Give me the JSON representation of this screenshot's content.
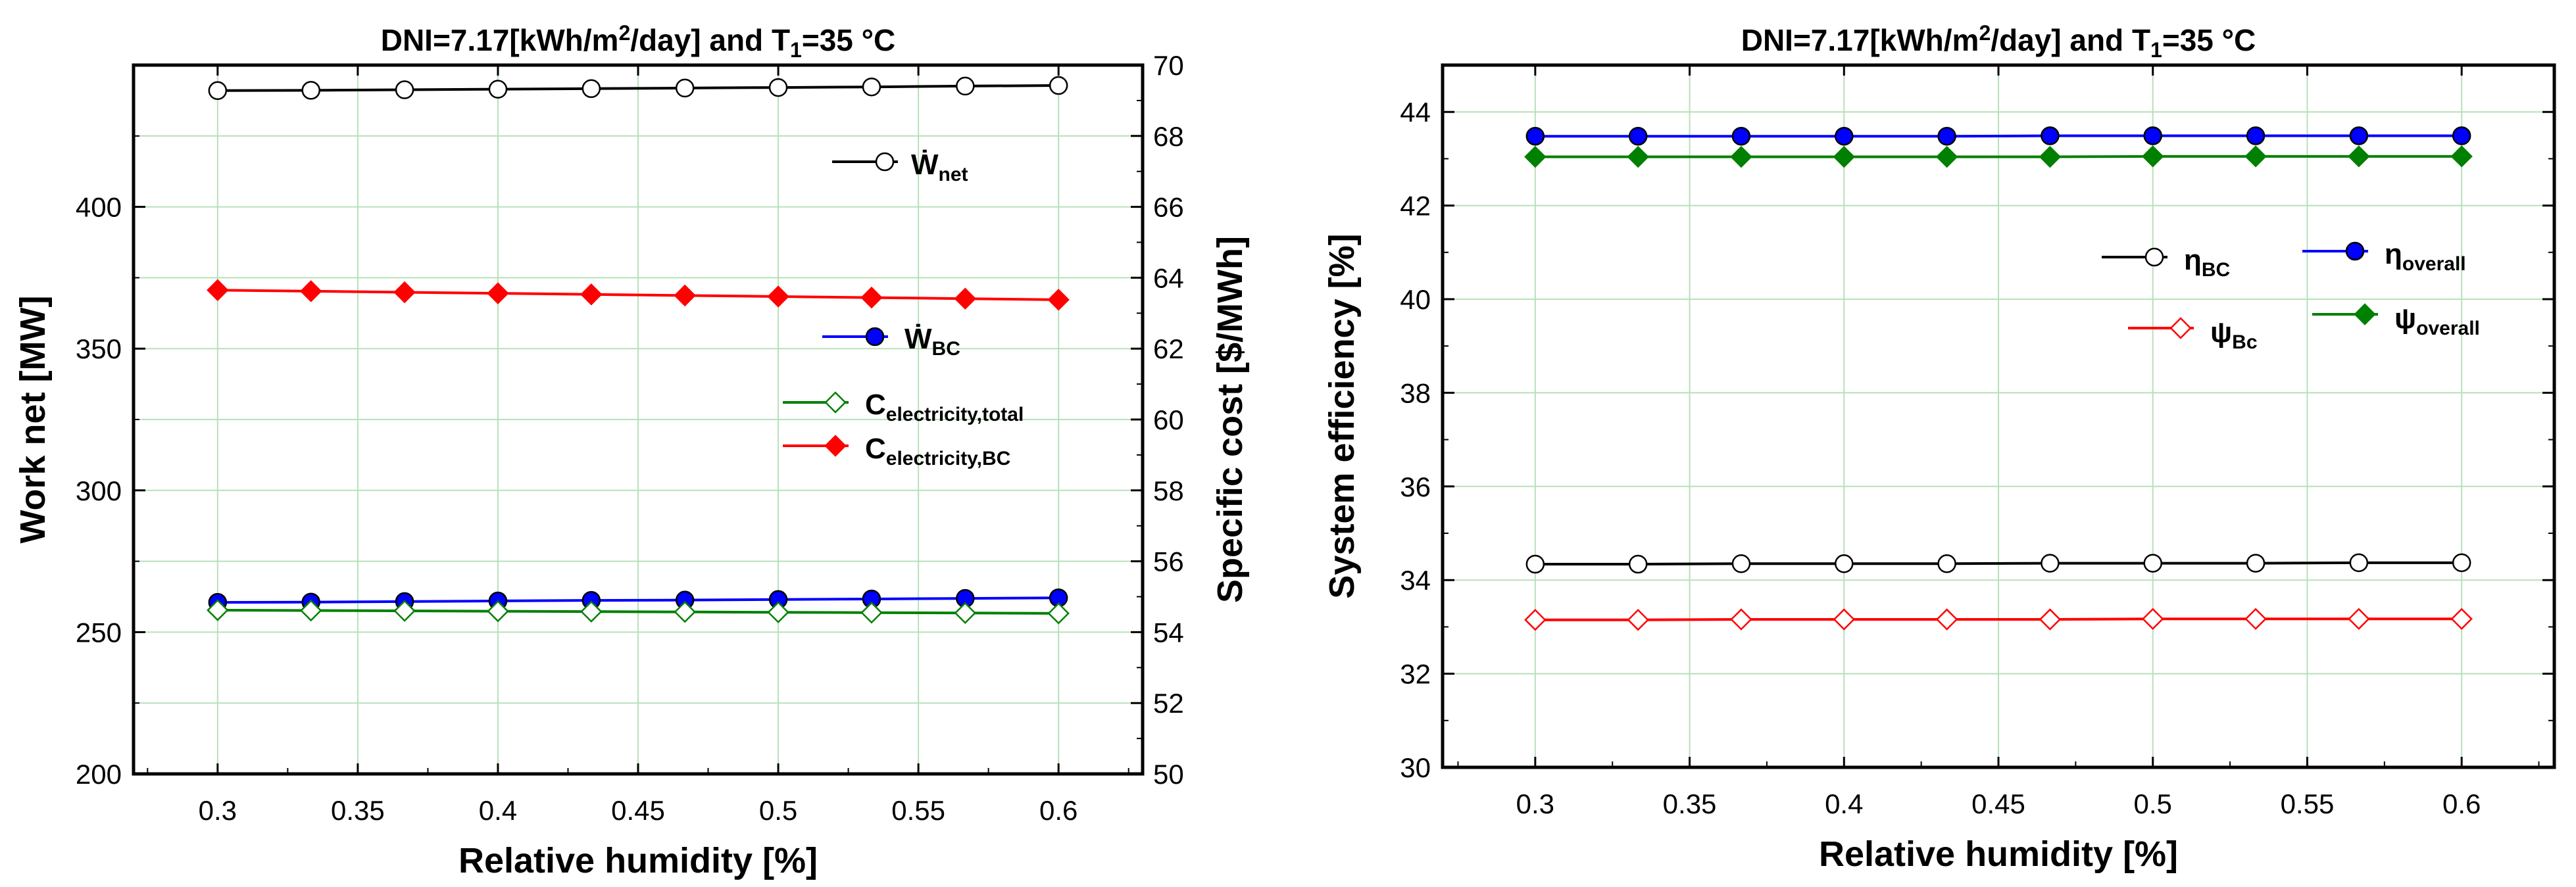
{
  "chart_data": [
    {
      "type": "line",
      "title": {
        "pre": "DNI=7.17[kWh/m",
        "sup": "2",
        "mid": "/day] and T",
        "sub": "1",
        "post": "=35 °C"
      },
      "xlabel": "Relative humidity [%]",
      "ylabel": "Work net [MW]",
      "y2label": "Specific cost [$/MWh]",
      "xlim": [
        0.27,
        0.63
      ],
      "ylim": [
        200,
        450
      ],
      "y2lim": [
        50,
        70
      ],
      "xticks": [
        "0.3",
        "0.35",
        "0.4",
        "0.45",
        "0.5",
        "0.55",
        "0.6"
      ],
      "yticks": [
        "200",
        "250",
        "300",
        "350",
        "400"
      ],
      "y2ticks": [
        "50",
        "52",
        "54",
        "56",
        "58",
        "60",
        "62",
        "64",
        "66",
        "68",
        "70"
      ],
      "x": [
        0.3,
        0.3333,
        0.3667,
        0.4,
        0.4333,
        0.4667,
        0.5,
        0.5333,
        0.5667,
        0.6
      ],
      "series": [
        {
          "name": "Ẇnet",
          "label_main": "Ẇ",
          "label_sub": "net",
          "axis": "left",
          "color": "#000000",
          "marker": "circle-open",
          "values": [
            441.0,
            441.1,
            441.3,
            441.5,
            441.7,
            441.9,
            442.1,
            442.3,
            442.6,
            442.8
          ]
        },
        {
          "name": "ẆBC",
          "label_main": "Ẇ",
          "label_sub": "BC",
          "axis": "left",
          "color": "#0000ff",
          "marker": "circle-filled",
          "values": [
            260.5,
            260.6,
            260.8,
            261.0,
            261.2,
            261.3,
            261.5,
            261.7,
            261.9,
            262.1
          ]
        },
        {
          "name": "Celectricity,total",
          "label_main": "C",
          "label_sub": "electricity,total",
          "axis": "right",
          "color": "#008000",
          "marker": "diamond-open",
          "values": [
            54.62,
            54.61,
            54.6,
            54.59,
            54.58,
            54.57,
            54.56,
            54.55,
            54.54,
            54.53
          ]
        },
        {
          "name": "Celectricity,BC",
          "label_main": "C",
          "label_sub": "electricity,BC",
          "axis": "right",
          "color": "#ff0000",
          "marker": "diamond-filled",
          "values": [
            63.65,
            63.62,
            63.59,
            63.56,
            63.53,
            63.5,
            63.47,
            63.44,
            63.41,
            63.38
          ]
        }
      ]
    },
    {
      "type": "line",
      "title": {
        "pre": "DNI=7.17[kWh/m",
        "sup": "2",
        "mid": "/day] and T",
        "sub": "1",
        "post": "=35 °C"
      },
      "xlabel": "Relative humidity [%]",
      "ylabel": "System efficiency [%]",
      "xlim": [
        0.27,
        0.63
      ],
      "ylim": [
        30,
        45
      ],
      "xticks": [
        "0.3",
        "0.35",
        "0.4",
        "0.45",
        "0.5",
        "0.55",
        "0.6"
      ],
      "yticks": [
        "30",
        "32",
        "34",
        "36",
        "38",
        "40",
        "42",
        "44"
      ],
      "x": [
        0.3,
        0.3333,
        0.3667,
        0.4,
        0.4333,
        0.4667,
        0.5,
        0.5333,
        0.5667,
        0.6
      ],
      "series": [
        {
          "name": "η BC",
          "label_main": "η",
          "label_sub": "BC",
          "color": "#000000",
          "marker": "circle-open",
          "values": [
            34.34,
            34.34,
            34.35,
            34.35,
            34.35,
            34.36,
            34.36,
            34.36,
            34.37,
            34.37
          ]
        },
        {
          "name": "η overall",
          "label_main": "η",
          "label_sub": "overall",
          "color": "#0000ff",
          "marker": "circle-filled",
          "values": [
            43.48,
            43.48,
            43.48,
            43.48,
            43.48,
            43.49,
            43.49,
            43.49,
            43.49,
            43.49
          ]
        },
        {
          "name": "ψ Bc",
          "label_main": "ψ",
          "label_sub": "Bc",
          "color": "#ff0000",
          "marker": "diamond-open",
          "values": [
            33.15,
            33.15,
            33.16,
            33.16,
            33.16,
            33.16,
            33.17,
            33.17,
            33.17,
            33.17
          ]
        },
        {
          "name": "ψ overall",
          "label_main": "ψ",
          "label_sub": "overall",
          "color": "#008000",
          "marker": "diamond-filled",
          "values": [
            43.04,
            43.04,
            43.04,
            43.04,
            43.04,
            43.04,
            43.05,
            43.05,
            43.05,
            43.05
          ]
        }
      ]
    }
  ]
}
